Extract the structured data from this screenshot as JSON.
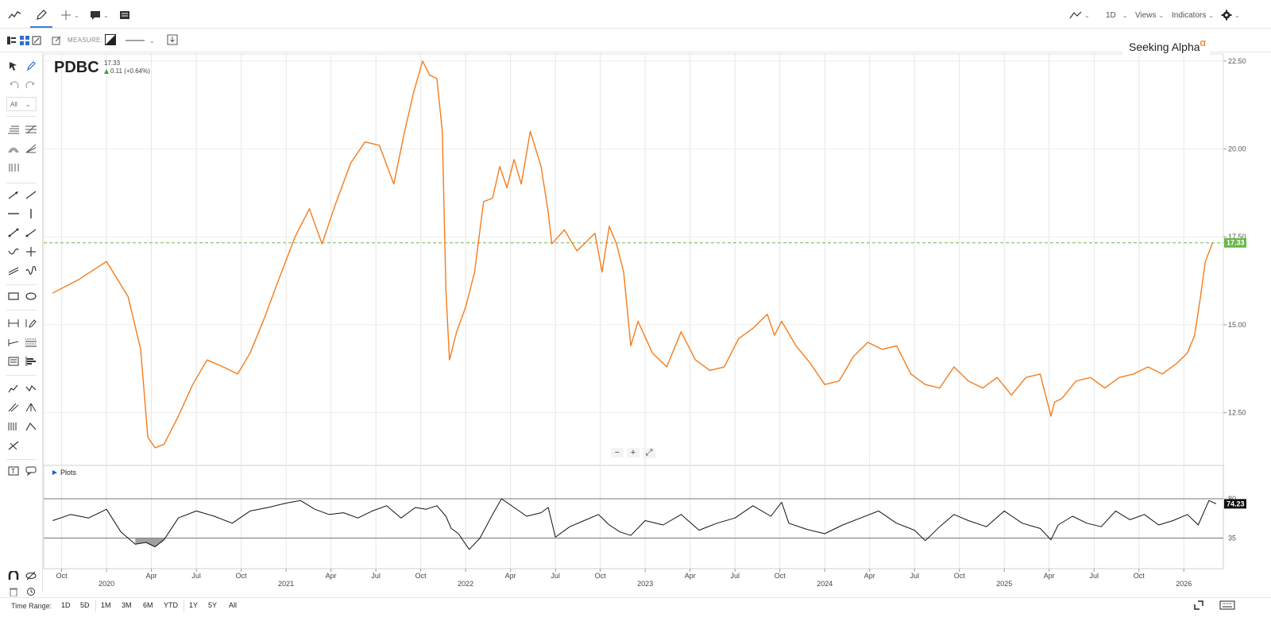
{
  "toolbar": {
    "left_icons": [
      "line-chart-icon",
      "pencil-icon",
      "crosshair-icon",
      "comment-icon",
      "table-icon"
    ],
    "timeframe_label": "1D",
    "views_label": "Views",
    "indicators_label": "Indicators"
  },
  "sub_toolbar": {
    "measure_label": "MEASURE:"
  },
  "sidebar": {
    "filter_label": "All"
  },
  "quote": {
    "ticker": "PDBC",
    "price": "17.33",
    "change": "0.11 (+0.64%)"
  },
  "brand": {
    "name": "Seeking Alpha",
    "sup": "α"
  },
  "zoom": {
    "minus": "−",
    "plus": "+",
    "reset": "⤢"
  },
  "plots_label": "Plots",
  "time_range": {
    "label": "Time Range:",
    "buttons": [
      "1D",
      "5D",
      "1M",
      "3M",
      "6M",
      "YTD",
      "1Y",
      "5Y",
      "All"
    ]
  },
  "colors": {
    "price_line": "#f57c1c",
    "last_price_badge": "#68b848",
    "osc_line": "#111111",
    "osc_fill": "#8a8a8a"
  },
  "chart_data": [
    {
      "type": "line",
      "series_name": "PDBC",
      "x_labels": [
        "Oct",
        "2020",
        "Apr",
        "Jul",
        "Oct",
        "2021",
        "Apr",
        "Jul",
        "Oct",
        "2022",
        "Apr",
        "Jul",
        "Oct",
        "2023",
        "Apr",
        "Jul",
        "Oct",
        "2024",
        "Apr",
        "Jul",
        "Oct",
        "2025",
        "Apr",
        "Jul",
        "Oct",
        "2026"
      ],
      "x": [
        2019.7,
        2019.85,
        2020.0,
        2020.12,
        2020.19,
        2020.23,
        2020.27,
        2020.32,
        2020.4,
        2020.48,
        2020.56,
        2020.65,
        2020.73,
        2020.8,
        2020.88,
        2020.96,
        2021.05,
        2021.13,
        2021.2,
        2021.28,
        2021.36,
        2021.44,
        2021.52,
        2021.6,
        2021.66,
        2021.71,
        2021.76,
        2021.8,
        2021.84,
        2021.87,
        2021.89,
        2021.91,
        2021.95,
        2022.0,
        2022.05,
        2022.1,
        2022.15,
        2022.19,
        2022.23,
        2022.27,
        2022.31,
        2022.36,
        2022.42,
        2022.46,
        2022.48,
        2022.55,
        2022.62,
        2022.68,
        2022.72,
        2022.76,
        2022.8,
        2022.84,
        2022.88,
        2022.92,
        2022.96,
        2023.04,
        2023.12,
        2023.2,
        2023.28,
        2023.36,
        2023.44,
        2023.52,
        2023.6,
        2023.68,
        2023.72,
        2023.76,
        2023.84,
        2023.92,
        2024.0,
        2024.08,
        2024.16,
        2024.24,
        2024.32,
        2024.4,
        2024.48,
        2024.56,
        2024.64,
        2024.72,
        2024.8,
        2024.88,
        2024.96,
        2025.04,
        2025.12,
        2025.2,
        2025.26,
        2025.28,
        2025.32,
        2025.4,
        2025.48,
        2025.56,
        2025.64,
        2025.72,
        2025.8,
        2025.88,
        2025.96,
        2026.02,
        2026.06,
        2026.09,
        2026.12,
        2026.16
      ],
      "y": [
        15.9,
        16.3,
        16.8,
        15.8,
        14.3,
        11.8,
        11.5,
        11.6,
        12.4,
        13.3,
        14.0,
        13.8,
        13.6,
        14.2,
        15.2,
        16.3,
        17.5,
        18.3,
        17.3,
        18.5,
        19.6,
        20.2,
        20.1,
        19.0,
        20.5,
        21.6,
        22.5,
        22.1,
        22.0,
        20.5,
        16.0,
        14.0,
        14.8,
        15.5,
        16.5,
        18.5,
        18.6,
        19.5,
        18.9,
        19.7,
        19.0,
        20.5,
        19.5,
        18.2,
        17.3,
        17.7,
        17.1,
        17.4,
        17.6,
        16.5,
        17.8,
        17.3,
        16.5,
        14.4,
        15.1,
        14.2,
        13.8,
        14.8,
        14.0,
        13.7,
        13.8,
        14.6,
        14.9,
        15.3,
        14.7,
        15.1,
        14.4,
        13.9,
        13.3,
        13.4,
        14.1,
        14.5,
        14.3,
        14.4,
        13.6,
        13.3,
        13.2,
        13.8,
        13.4,
        13.2,
        13.5,
        13.0,
        13.5,
        13.6,
        12.4,
        12.8,
        12.9,
        13.4,
        13.5,
        13.2,
        13.5,
        13.6,
        13.8,
        13.6,
        13.9,
        14.2,
        14.7,
        15.7,
        16.8,
        17.33
      ],
      "ylim": [
        11.0,
        22.7
      ],
      "y_ticks": [
        "22.50",
        "20.00",
        "17.50",
        "15.00",
        "12.50"
      ],
      "last_value_label": "17.33",
      "x_start": 2019.65,
      "x_end": 2026.22
    },
    {
      "type": "area",
      "series_name": "Plots",
      "x": [
        2019.7,
        2019.8,
        2019.9,
        2020.0,
        2020.08,
        2020.16,
        2020.22,
        2020.27,
        2020.32,
        2020.4,
        2020.5,
        2020.6,
        2020.7,
        2020.8,
        2020.9,
        2021.0,
        2021.08,
        2021.16,
        2021.24,
        2021.32,
        2021.4,
        2021.48,
        2021.56,
        2021.64,
        2021.72,
        2021.78,
        2021.84,
        2021.89,
        2021.92,
        2021.96,
        2022.02,
        2022.08,
        2022.15,
        2022.2,
        2022.27,
        2022.34,
        2022.42,
        2022.46,
        2022.5,
        2022.58,
        2022.66,
        2022.74,
        2022.8,
        2022.86,
        2022.92,
        2023.0,
        2023.1,
        2023.2,
        2023.3,
        2023.4,
        2023.5,
        2023.6,
        2023.7,
        2023.76,
        2023.8,
        2023.9,
        2024.0,
        2024.1,
        2024.2,
        2024.3,
        2024.4,
        2024.5,
        2024.56,
        2024.64,
        2024.72,
        2024.8,
        2024.9,
        2025.0,
        2025.1,
        2025.2,
        2025.26,
        2025.3,
        2025.38,
        2025.46,
        2025.54,
        2025.62,
        2025.7,
        2025.78,
        2025.86,
        2025.94,
        2026.02,
        2026.08,
        2026.14,
        2026.18
      ],
      "y": [
        55,
        62,
        58,
        68,
        42,
        28,
        30,
        25,
        33,
        58,
        66,
        60,
        52,
        66,
        70,
        75,
        78,
        68,
        62,
        64,
        58,
        66,
        72,
        58,
        70,
        68,
        72,
        60,
        46,
        40,
        22,
        35,
        62,
        80,
        70,
        60,
        64,
        70,
        36,
        48,
        55,
        62,
        50,
        42,
        38,
        55,
        50,
        62,
        44,
        52,
        58,
        72,
        60,
        76,
        52,
        45,
        40,
        50,
        58,
        66,
        52,
        44,
        32,
        48,
        62,
        55,
        48,
        66,
        52,
        46,
        33,
        50,
        60,
        52,
        48,
        66,
        56,
        62,
        50,
        55,
        62,
        50,
        78,
        74.23
      ],
      "ylim": [
        0,
        100
      ],
      "y_ticks": [
        "80",
        "35"
      ],
      "band": [
        80,
        35
      ],
      "last_value_label": "74.23"
    }
  ]
}
